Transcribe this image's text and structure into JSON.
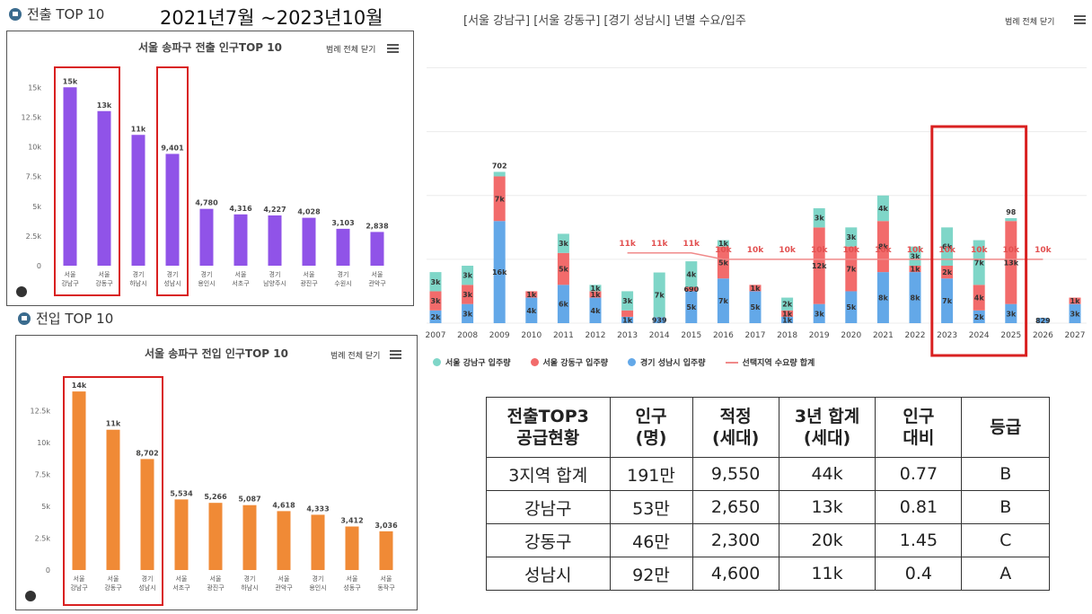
{
  "header": {
    "out_title": "전출 TOP 10",
    "date_range": "2021년7월 ~2023년10월",
    "in_title": "전입 TOP 10"
  },
  "legend_button": "범례 전체 닫기",
  "colors": {
    "purple": "#9053e8",
    "orange": "#f08a36",
    "gangnam": "#7fd6c8",
    "gangdong": "#f26b6b",
    "seongnam": "#63a8e8",
    "demand": "#f08a8a",
    "highlight": "#d92020"
  },
  "chart_data": [
    {
      "type": "bar",
      "title": "서울 송파구 전출 인구TOP 10",
      "categories": [
        [
          "서울",
          "강남구"
        ],
        [
          "서울",
          "강동구"
        ],
        [
          "경기",
          "하남시"
        ],
        [
          "경기",
          "성남시"
        ],
        [
          "경기",
          "용인시"
        ],
        [
          "서울",
          "서초구"
        ],
        [
          "경기",
          "남양주시"
        ],
        [
          "서울",
          "광진구"
        ],
        [
          "경기",
          "수원시"
        ],
        [
          "서울",
          "관악구"
        ]
      ],
      "values": [
        15000,
        13000,
        11000,
        9401,
        4780,
        4316,
        4227,
        4028,
        3103,
        2838
      ],
      "labels": [
        "15k",
        "13k",
        "11k",
        "9,401",
        "4,780",
        "4,316",
        "4,227",
        "4,028",
        "3,103",
        "2,838"
      ],
      "yticks": [
        0,
        2500,
        5000,
        7500,
        10000,
        12500,
        15000
      ],
      "ytick_labels": [
        "0",
        "2.5k",
        "5k",
        "7.5k",
        "10k",
        "12.5k",
        "15k"
      ],
      "ylim": [
        0,
        16000
      ]
    },
    {
      "type": "bar",
      "title": "서울 송파구 전입 인구TOP 10",
      "categories": [
        [
          "서울",
          "강남구"
        ],
        [
          "서울",
          "강동구"
        ],
        [
          "경기",
          "성남시"
        ],
        [
          "서울",
          "서초구"
        ],
        [
          "서울",
          "광진구"
        ],
        [
          "경기",
          "하남시"
        ],
        [
          "서울",
          "관악구"
        ],
        [
          "경기",
          "용인시"
        ],
        [
          "서울",
          "성동구"
        ],
        [
          "서울",
          "동작구"
        ]
      ],
      "values": [
        14000,
        11000,
        8702,
        5534,
        5266,
        5087,
        4618,
        4333,
        3412,
        3036
      ],
      "labels": [
        "14k",
        "11k",
        "8,702",
        "5,534",
        "5,266",
        "5,087",
        "4,618",
        "4,333",
        "3,412",
        "3,036"
      ],
      "yticks": [
        0,
        2500,
        5000,
        7500,
        10000,
        12500
      ],
      "ytick_labels": [
        "0",
        "2.5k",
        "5k",
        "7.5k",
        "10k",
        "12.5k"
      ],
      "ylim": [
        0,
        14500
      ]
    },
    {
      "type": "bar",
      "stacked": true,
      "title": "[서울 강남구] [서울 강동구] [경기 성남시] 년별 수요/입주",
      "categories": [
        "2007",
        "2008",
        "2009",
        "2010",
        "2011",
        "2012",
        "2013",
        "2014",
        "2015",
        "2016",
        "2017",
        "2018",
        "2019",
        "2020",
        "2021",
        "2022",
        "2023",
        "2024",
        "2025",
        "2026",
        "2027"
      ],
      "series": [
        {
          "name": "경기 성남시 입주량",
          "values": [
            2000,
            3000,
            16000,
            4000,
            6000,
            4000,
            1000,
            939,
            5000,
            7000,
            5000,
            1000,
            3000,
            5000,
            8000,
            8000,
            7000,
            2000,
            3000,
            829,
            3000
          ],
          "labels": [
            "2k",
            "3k",
            "16k",
            "4k",
            "6k",
            "4k",
            "1k",
            "939",
            "5k",
            "7k",
            "5k",
            "1k",
            "3k",
            "5k",
            "8k",
            "8k",
            "7k",
            "2k",
            "3k",
            "829",
            "3k"
          ]
        },
        {
          "name": "서울 강동구 입주량",
          "values": [
            3000,
            3000,
            7000,
            1000,
            5000,
            1000,
            1000,
            0,
            690,
            5000,
            1000,
            1000,
            12000,
            7000,
            8000,
            1000,
            2000,
            4000,
            13000,
            0,
            1000
          ],
          "labels": [
            "3k",
            "3k",
            "7k",
            "1k",
            "5k",
            "1k",
            "",
            "",
            "690",
            "5k",
            "1k",
            "1k",
            "12k",
            "7k",
            "8k",
            "1k",
            "2k",
            "4k",
            "13k",
            "",
            "1k"
          ]
        },
        {
          "name": "서울 강남구 입주량",
          "values": [
            3000,
            3000,
            702,
            0,
            3000,
            1000,
            3000,
            7000,
            4000,
            1000,
            0,
            2000,
            3000,
            3000,
            4000,
            3000,
            6000,
            7000,
            98,
            0,
            0
          ],
          "labels": [
            "3k",
            "3k",
            "702",
            "",
            "3k",
            "1k",
            "3k",
            "7k",
            "4k",
            "1k",
            "",
            "2k",
            "3k",
            "3k",
            "4k",
            "3k",
            "6k",
            "7k",
            "98",
            "",
            ""
          ]
        }
      ],
      "line": {
        "name": "선택지역 수요량 합계",
        "x_start": "2013",
        "x_end": "2026",
        "values": [
          11000,
          11000,
          11000,
          10000,
          10000,
          10000,
          10000,
          10000,
          10000,
          10000,
          10000,
          10000,
          10000,
          10000
        ],
        "labels": [
          "11k",
          "11k",
          "11k",
          "10k",
          "10k",
          "10k",
          "10k",
          "10k",
          "10k",
          "10k",
          "10k",
          "10k",
          "10k",
          "10k"
        ]
      },
      "highlight": [
        "2023",
        "2025"
      ],
      "ylim": [
        0,
        45000
      ]
    }
  ],
  "summary_table": {
    "headers": [
      "전출TOP3\n공급현황",
      "인구\n(명)",
      "적정\n(세대)",
      "3년 합계\n(세대)",
      "인구\n대비",
      "등급"
    ],
    "rows": [
      [
        "3지역 합계",
        "191만",
        "9,550",
        "44k",
        "0.77",
        "B"
      ],
      [
        "강남구",
        "53만",
        "2,650",
        "13k",
        "0.81",
        "B"
      ],
      [
        "강동구",
        "46만",
        "2,300",
        "20k",
        "1.45",
        "C"
      ],
      [
        "성남시",
        "92만",
        "4,600",
        "11k",
        "0.4",
        "A"
      ]
    ]
  }
}
